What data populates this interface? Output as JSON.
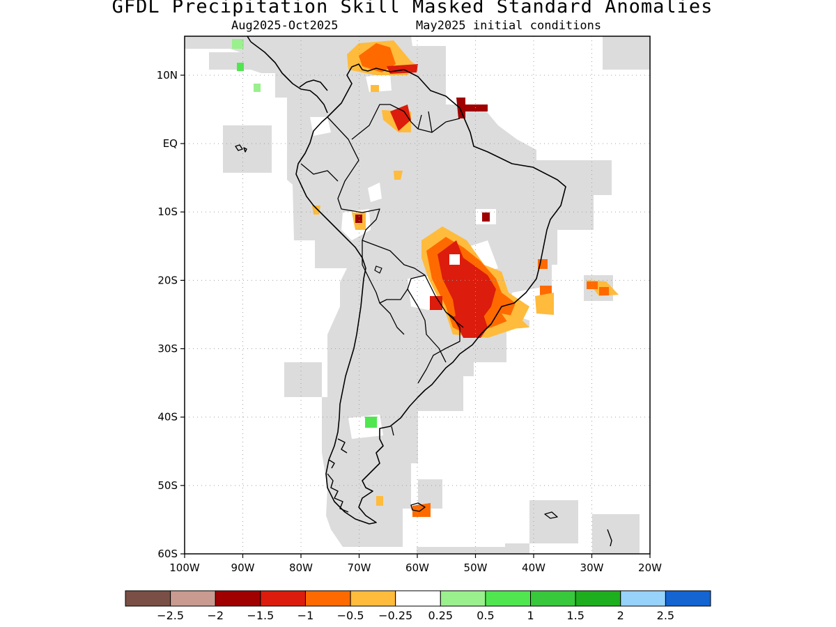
{
  "title": "GFDL Precipitation Skill Masked Standard Anomalies",
  "subtitle_left": "Aug2025-Oct2025",
  "subtitle_right": "May2025 initial conditions",
  "lat_ticks": [
    {
      "value": 10,
      "label": "10N"
    },
    {
      "value": 0,
      "label": "EQ"
    },
    {
      "value": -10,
      "label": "10S"
    },
    {
      "value": -20,
      "label": "20S"
    },
    {
      "value": -30,
      "label": "30S"
    },
    {
      "value": -40,
      "label": "40S"
    },
    {
      "value": -50,
      "label": "50S"
    },
    {
      "value": -60,
      "label": "60S"
    }
  ],
  "lon_ticks": [
    {
      "value": -100,
      "label": "100W"
    },
    {
      "value": -90,
      "label": "90W"
    },
    {
      "value": -80,
      "label": "80W"
    },
    {
      "value": -70,
      "label": "70W"
    },
    {
      "value": -60,
      "label": "60W"
    },
    {
      "value": -50,
      "label": "50W"
    },
    {
      "value": -40,
      "label": "40W"
    },
    {
      "value": -30,
      "label": "30W"
    },
    {
      "value": -20,
      "label": "20W"
    }
  ],
  "colorbar": {
    "colors": [
      "#7a4f45",
      "#c99a90",
      "#a00000",
      "#dc1c0c",
      "#ff6a00",
      "#ffbb3c",
      "#ffffff",
      "#99f08c",
      "#50e650",
      "#38c83c",
      "#1eaf1e",
      "#96d2fa",
      "#1464d2"
    ],
    "labels": [
      "-2.5",
      "-2",
      "-1.5",
      "-1",
      "-0.5",
      "-0.25",
      "0.25",
      "0.5",
      "1",
      "1.5",
      "2",
      "2.5"
    ]
  },
  "map_colors": {
    "masked": "#dcdcdc",
    "coast": "#000000",
    "grid": "#a0a0a0"
  }
}
